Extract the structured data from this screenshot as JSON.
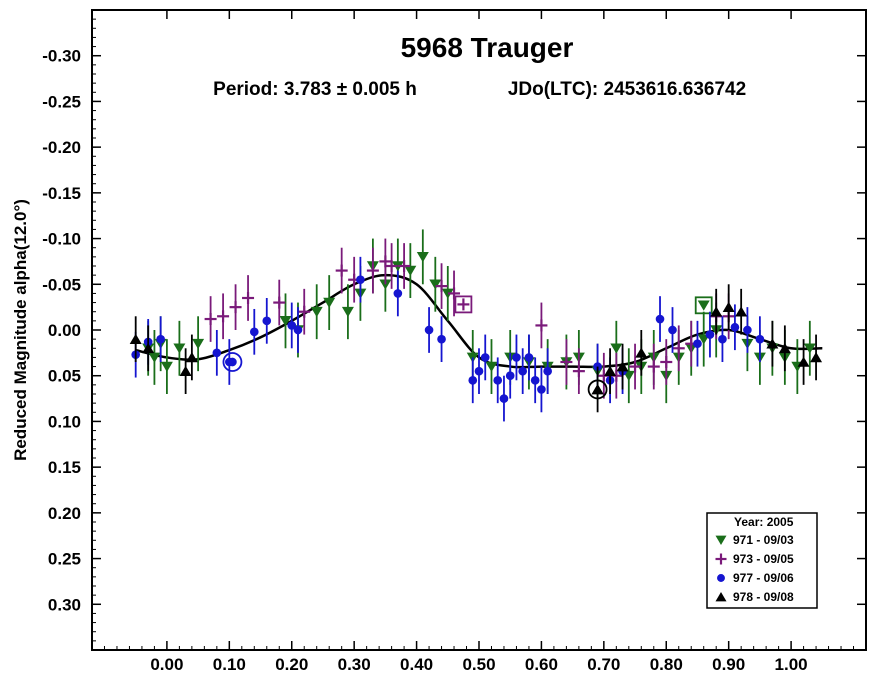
{
  "chart_data": {
    "type": "scatter",
    "title": "5968 Trauger",
    "subtitle_period": "Period: 3.783 ± 0.005 h",
    "subtitle_epoch": "JDo(LTC): 2453616.636742",
    "xlabel": "",
    "ylabel": "Reduced Magnitude alpha(12.0°)",
    "xlim": [
      -0.12,
      1.12
    ],
    "ylim": [
      -0.35,
      0.35
    ],
    "y_inverted": true,
    "xticks": [
      0.0,
      0.1,
      0.2,
      0.3,
      0.4,
      0.5,
      0.6,
      0.7,
      0.8,
      0.9,
      1.0
    ],
    "xtick_labels": [
      "0.00",
      "0.10",
      "0.20",
      "0.30",
      "0.40",
      "0.50",
      "0.60",
      "0.70",
      "0.80",
      "0.90",
      "1.00"
    ],
    "yticks": [
      -0.3,
      -0.25,
      -0.2,
      -0.15,
      -0.1,
      -0.05,
      0.0,
      0.05,
      0.1,
      0.15,
      0.2,
      0.25,
      0.3
    ],
    "ytick_labels": [
      "-0.30",
      "-0.25",
      "-0.20",
      "-0.15",
      "-0.10",
      "-0.05",
      "0.00",
      "0.05",
      "0.10",
      "0.15",
      "0.20",
      "0.25",
      "0.30"
    ],
    "grid": false,
    "legend_title": "Year: 2005",
    "legend_position": "bottom-right",
    "fit_curve": {
      "x": [
        -0.05,
        0.0,
        0.05,
        0.1,
        0.15,
        0.2,
        0.25,
        0.3,
        0.35,
        0.4,
        0.45,
        0.5,
        0.55,
        0.6,
        0.65,
        0.7,
        0.75,
        0.8,
        0.85,
        0.9,
        0.95,
        1.0,
        1.05
      ],
      "y": [
        0.022,
        0.03,
        0.032,
        0.022,
        0.008,
        -0.01,
        -0.03,
        -0.05,
        -0.06,
        -0.05,
        -0.01,
        0.03,
        0.04,
        0.04,
        0.04,
        0.04,
        0.035,
        0.02,
        0.005,
        0.0,
        0.01,
        0.02,
        0.02
      ]
    },
    "series": [
      {
        "name": "971 - 09/03",
        "marker": "triangle-down",
        "color": "#1a6e1a",
        "x": [
          -0.03,
          -0.02,
          -0.01,
          0.0,
          0.02,
          0.05,
          0.19,
          0.21,
          0.24,
          0.26,
          0.29,
          0.31,
          0.33,
          0.35,
          0.37,
          0.39,
          0.41,
          0.43,
          0.45,
          0.49,
          0.52,
          0.55,
          0.58,
          0.61,
          0.64,
          0.66,
          0.69,
          0.72,
          0.74,
          0.76,
          0.78,
          0.8,
          0.82,
          0.84,
          0.86,
          0.88,
          0.93,
          0.95,
          0.97,
          0.99,
          1.01,
          1.03
        ],
        "y": [
          0.02,
          0.03,
          0.015,
          0.04,
          0.02,
          0.015,
          -0.01,
          0.0,
          -0.02,
          -0.03,
          -0.02,
          -0.04,
          -0.07,
          -0.05,
          -0.07,
          -0.065,
          -0.08,
          -0.05,
          -0.04,
          0.03,
          0.04,
          0.03,
          0.035,
          0.04,
          0.035,
          0.03,
          0.045,
          0.02,
          0.05,
          0.04,
          0.03,
          0.05,
          0.03,
          0.02,
          0.01,
          0.0,
          0.015,
          0.03,
          0.02,
          0.03,
          0.04,
          0.02
        ],
        "err": [
          0.03,
          0.03,
          0.03,
          0.03,
          0.03,
          0.03,
          0.03,
          0.03,
          0.03,
          0.03,
          0.03,
          0.03,
          0.03,
          0.03,
          0.03,
          0.03,
          0.03,
          0.03,
          0.03,
          0.03,
          0.03,
          0.03,
          0.03,
          0.03,
          0.03,
          0.03,
          0.03,
          0.03,
          0.03,
          0.03,
          0.03,
          0.03,
          0.03,
          0.03,
          0.03,
          0.03,
          0.03,
          0.03,
          0.03,
          0.03,
          0.03,
          0.03
        ],
        "highlight": {
          "x": 0.86,
          "y": -0.027
        }
      },
      {
        "name": "973 - 09/05",
        "marker": "plus",
        "color": "#7a1a7a",
        "x": [
          0.07,
          0.09,
          0.11,
          0.13,
          0.18,
          0.22,
          0.28,
          0.3,
          0.33,
          0.35,
          0.36,
          0.38,
          0.44,
          0.46,
          0.6,
          0.64,
          0.66,
          0.7,
          0.72,
          0.75,
          0.78,
          0.8,
          0.82,
          0.84,
          0.88,
          0.9
        ],
        "y": [
          -0.012,
          -0.015,
          -0.025,
          -0.035,
          -0.03,
          -0.02,
          -0.065,
          -0.055,
          -0.065,
          -0.075,
          -0.07,
          -0.07,
          -0.048,
          -0.04,
          -0.005,
          0.035,
          0.045,
          0.05,
          0.05,
          0.04,
          0.04,
          0.035,
          0.02,
          0.015,
          -0.015,
          -0.015
        ],
        "err": [
          0.025,
          0.025,
          0.025,
          0.025,
          0.025,
          0.025,
          0.025,
          0.025,
          0.025,
          0.025,
          0.025,
          0.025,
          0.025,
          0.025,
          0.025,
          0.025,
          0.025,
          0.025,
          0.025,
          0.025,
          0.025,
          0.025,
          0.025,
          0.025,
          0.025,
          0.025
        ],
        "highlight": {
          "x": 0.475,
          "y": -0.028
        }
      },
      {
        "name": "977 - 09/06",
        "marker": "circle",
        "color": "#1515d0",
        "x": [
          -0.05,
          -0.03,
          -0.01,
          0.08,
          0.1,
          0.14,
          0.16,
          0.2,
          0.21,
          0.31,
          0.37,
          0.42,
          0.44,
          0.49,
          0.5,
          0.51,
          0.53,
          0.54,
          0.55,
          0.56,
          0.57,
          0.58,
          0.59,
          0.6,
          0.61,
          0.69,
          0.71,
          0.73,
          0.79,
          0.81,
          0.85,
          0.87,
          0.89,
          0.91,
          0.93,
          0.95
        ],
        "y": [
          0.027,
          0.013,
          0.01,
          0.025,
          0.035,
          0.002,
          -0.01,
          -0.005,
          0.0,
          -0.055,
          -0.04,
          0.0,
          0.01,
          0.055,
          0.045,
          0.03,
          0.055,
          0.075,
          0.05,
          0.03,
          0.045,
          0.03,
          0.055,
          0.065,
          0.045,
          0.04,
          0.055,
          0.045,
          -0.012,
          0.0,
          0.015,
          0.005,
          0.01,
          -0.003,
          0.0,
          0.01
        ],
        "err": [
          0.025,
          0.025,
          0.025,
          0.025,
          0.025,
          0.025,
          0.025,
          0.025,
          0.025,
          0.025,
          0.025,
          0.025,
          0.025,
          0.025,
          0.025,
          0.025,
          0.025,
          0.025,
          0.025,
          0.025,
          0.025,
          0.025,
          0.025,
          0.025,
          0.025,
          0.025,
          0.025,
          0.025,
          0.025,
          0.025,
          0.025,
          0.025,
          0.025,
          0.025,
          0.025,
          0.025
        ],
        "highlight": {
          "x": 0.105,
          "y": 0.035
        }
      },
      {
        "name": "978 - 09/08",
        "marker": "triangle-up",
        "color": "#000000",
        "x": [
          -0.05,
          -0.03,
          0.03,
          0.04,
          0.69,
          0.71,
          0.73,
          0.76,
          0.88,
          0.9,
          0.92,
          0.97,
          0.99,
          1.02,
          1.04
        ],
        "y": [
          0.01,
          0.02,
          0.045,
          0.03,
          0.065,
          0.045,
          0.04,
          0.025,
          -0.02,
          -0.025,
          -0.02,
          0.015,
          0.02,
          0.035,
          0.03
        ],
        "err": [
          0.025,
          0.025,
          0.025,
          0.025,
          0.025,
          0.025,
          0.025,
          0.025,
          0.025,
          0.025,
          0.025,
          0.025,
          0.025,
          0.025,
          0.025
        ],
        "highlight": {
          "x": 0.69,
          "y": 0.065
        }
      }
    ]
  }
}
